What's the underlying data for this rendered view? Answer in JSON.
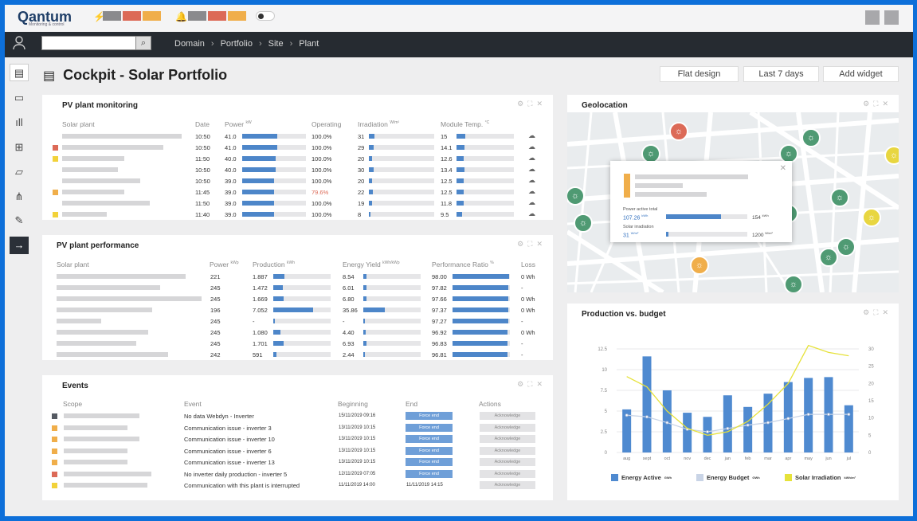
{
  "app": {
    "logo": "Qantum",
    "logo_sub": "Monitoring & control"
  },
  "topbar": {
    "alert_colors": [
      "#8a8a8d",
      "#dc6a57",
      "#f0ae4a"
    ],
    "notify_colors": [
      "#8a8a8d",
      "#dc6a57",
      "#f0ae4a"
    ]
  },
  "search": {
    "placeholder": ""
  },
  "breadcrumb": [
    "Domain",
    "Portfolio",
    "Site",
    "Plant"
  ],
  "page": {
    "title": "Cockpit - Solar Portfolio",
    "buttons": [
      "Flat design",
      "Last 7 days",
      "Add widget"
    ]
  },
  "monitoring": {
    "title": "PV plant monitoring",
    "headers": {
      "plant": "Solar plant",
      "date": "Date",
      "power": "Power",
      "power_unit": "kW",
      "operating": "Operating",
      "irradiation": "Irradiation",
      "irr_unit": "W/m²",
      "temp": "Module Temp.",
      "temp_unit": "°C"
    },
    "rows": [
      {
        "status": "",
        "date": "10:50",
        "power": "41.0",
        "power_pct": 0.55,
        "op": "100.0%",
        "op_alert": false,
        "irr": "31",
        "irr_pct": 0.08,
        "temp": "15",
        "temp_pct": 0.15
      },
      {
        "status": "#dc6a57",
        "date": "10:50",
        "power": "41.0",
        "power_pct": 0.55,
        "op": "100.0%",
        "op_alert": false,
        "irr": "29",
        "irr_pct": 0.07,
        "temp": "14.1",
        "temp_pct": 0.14
      },
      {
        "status": "#f2d23a",
        "date": "11:50",
        "power": "40.0",
        "power_pct": 0.52,
        "op": "100.0%",
        "op_alert": false,
        "irr": "20",
        "irr_pct": 0.05,
        "temp": "12.6",
        "temp_pct": 0.13
      },
      {
        "status": "",
        "date": "10:50",
        "power": "40.0",
        "power_pct": 0.52,
        "op": "100.0%",
        "op_alert": false,
        "irr": "30",
        "irr_pct": 0.07,
        "temp": "13.4",
        "temp_pct": 0.14
      },
      {
        "status": "",
        "date": "10:50",
        "power": "39.0",
        "power_pct": 0.5,
        "op": "100.0%",
        "op_alert": false,
        "irr": "20",
        "irr_pct": 0.05,
        "temp": "12.5",
        "temp_pct": 0.13
      },
      {
        "status": "#f0ae4a",
        "date": "11:45",
        "power": "39.0",
        "power_pct": 0.5,
        "op": "79.6%",
        "op_alert": true,
        "irr": "22",
        "irr_pct": 0.06,
        "temp": "12.5",
        "temp_pct": 0.13
      },
      {
        "status": "",
        "date": "11:50",
        "power": "39.0",
        "power_pct": 0.5,
        "op": "100.0%",
        "op_alert": false,
        "irr": "19",
        "irr_pct": 0.05,
        "temp": "11.8",
        "temp_pct": 0.12
      },
      {
        "status": "#f2d23a",
        "date": "11:40",
        "power": "39.0",
        "power_pct": 0.5,
        "op": "100.0%",
        "op_alert": false,
        "irr": "8",
        "irr_pct": 0.02,
        "temp": "9.5",
        "temp_pct": 0.1
      }
    ]
  },
  "performance": {
    "title": "PV plant performance",
    "headers": {
      "plant": "Solar plant",
      "power": "Power",
      "power_unit": "kWp",
      "production": "Production",
      "prod_unit": "kWh",
      "yield": "Energy Yield",
      "yield_unit": "kWh/kWp",
      "pr": "Performance Ratio",
      "pr_unit": "%",
      "loss": "Loss"
    },
    "rows": [
      {
        "power": "221",
        "prod": "1.887",
        "prod_pct": 0.2,
        "yield": "8.54",
        "yield_pct": 0.06,
        "pr": "98.00",
        "pr_pct": 0.98,
        "loss": "0 Wh"
      },
      {
        "power": "245",
        "prod": "1.472",
        "prod_pct": 0.16,
        "yield": "6.01",
        "yield_pct": 0.05,
        "pr": "97.82",
        "pr_pct": 0.97,
        "loss": "-"
      },
      {
        "power": "245",
        "prod": "1.669",
        "prod_pct": 0.18,
        "yield": "6.80",
        "yield_pct": 0.05,
        "pr": "97.66",
        "pr_pct": 0.97,
        "loss": "0 Wh"
      },
      {
        "power": "196",
        "prod": "7.052",
        "prod_pct": 0.7,
        "yield": "35.86",
        "yield_pct": 0.37,
        "pr": "97.37",
        "pr_pct": 0.97,
        "loss": "0 Wh"
      },
      {
        "power": "245",
        "prod": "-",
        "prod_pct": 0.02,
        "yield": "-",
        "yield_pct": 0.02,
        "pr": "97.27",
        "pr_pct": 0.97,
        "loss": "-"
      },
      {
        "power": "245",
        "prod": "1.080",
        "prod_pct": 0.12,
        "yield": "4.40",
        "yield_pct": 0.04,
        "pr": "96.92",
        "pr_pct": 0.96,
        "loss": "0 Wh"
      },
      {
        "power": "245",
        "prod": "1.701",
        "prod_pct": 0.18,
        "yield": "6.93",
        "yield_pct": 0.05,
        "pr": "96.83",
        "pr_pct": 0.96,
        "loss": "-"
      },
      {
        "power": "242",
        "prod": "591",
        "prod_pct": 0.06,
        "yield": "2.44",
        "yield_pct": 0.03,
        "pr": "96.81",
        "pr_pct": 0.96,
        "loss": "-"
      }
    ]
  },
  "events": {
    "title": "Events",
    "headers": {
      "scope": "Scope",
      "event": "Event",
      "beginning": "Beginning",
      "end": "End",
      "actions": "Actions"
    },
    "force_label": "Force end",
    "ack_label": "Acknowledge",
    "rows": [
      {
        "color": "#555a62",
        "event": "No data Webdyn - Inverter",
        "begin": "15/11/2019 09:16",
        "end": "",
        "force": true
      },
      {
        "color": "#f0ae4a",
        "event": "Communication issue - inverter 3",
        "begin": "13/11/2019 10:15",
        "end": "",
        "force": true
      },
      {
        "color": "#f0ae4a",
        "event": "Communication issue - inverter 10",
        "begin": "13/11/2019 10:15",
        "end": "",
        "force": true
      },
      {
        "color": "#f0ae4a",
        "event": "Communication issue - inverter 6",
        "begin": "13/11/2019 10:15",
        "end": "",
        "force": true
      },
      {
        "color": "#f0ae4a",
        "event": "Communication issue - inverter 13",
        "begin": "13/11/2019 10:15",
        "end": "",
        "force": true
      },
      {
        "color": "#dc6a57",
        "event": "No inverter daily production - inverter 5",
        "begin": "12/11/2019 07:05",
        "end": "",
        "force": true
      },
      {
        "color": "#f2d23a",
        "event": "Communication with this plant is interrupted",
        "begin": "11/11/2019 14:00",
        "end": "11/11/2019 14:15",
        "force": false
      }
    ]
  },
  "geolocation": {
    "title": "Geolocation",
    "popup": {
      "power_label": "Power active total",
      "power_value": "107.26",
      "power_unit": "kWh",
      "power_max": "154",
      "power_max_unit": "kWh",
      "power_pct": 0.68,
      "irr_label": "Solar irradiation",
      "irr_value": "31",
      "irr_unit": "W/m²",
      "irr_max": "1200",
      "irr_max_unit": "W/m²",
      "irr_pct": 0.03
    },
    "pin_colors": {
      "green": "#4f9a73",
      "red": "#dc6a57",
      "orange": "#f0ae4a",
      "yellow": "#e8d640"
    }
  },
  "chart_data": {
    "type": "bar",
    "title": "Production vs. budget",
    "categories": [
      "aug",
      "sept",
      "oct",
      "nov",
      "dec",
      "jan",
      "feb",
      "mar",
      "apr",
      "may",
      "jun",
      "jul"
    ],
    "series": [
      {
        "name": "Energy Active",
        "unit": "GWh",
        "type": "bar",
        "axis": "left",
        "color": "#4f8ad0",
        "values": [
          5.2,
          11.6,
          7.5,
          4.8,
          4.3,
          6.9,
          5.5,
          7.1,
          8.5,
          9.0,
          9.1,
          5.7
        ]
      },
      {
        "name": "Energy Budget",
        "unit": "GWh",
        "type": "line",
        "axis": "left",
        "color": "#c9d4e6",
        "values": [
          4.5,
          4.3,
          3.6,
          2.8,
          2.5,
          2.9,
          3.3,
          3.6,
          4.1,
          4.6,
          4.6,
          4.6
        ]
      },
      {
        "name": "Solar Irradiation",
        "unit": "kWh/m²",
        "type": "line",
        "axis": "right",
        "color": "#e6e23a",
        "values": [
          22,
          19,
          12,
          7,
          5,
          6,
          9,
          14,
          20,
          31,
          29,
          28
        ]
      }
    ],
    "ylim": [
      0,
      12.5
    ],
    "y_ticks": [
      "12.5",
      "10",
      "7.5",
      "5",
      "2.5",
      "0"
    ],
    "y2lim": [
      0,
      30
    ],
    "y2_ticks": [
      "30",
      "25",
      "20",
      "15",
      "10",
      "5",
      "0"
    ],
    "legend_position": "bottom",
    "grid": true
  }
}
